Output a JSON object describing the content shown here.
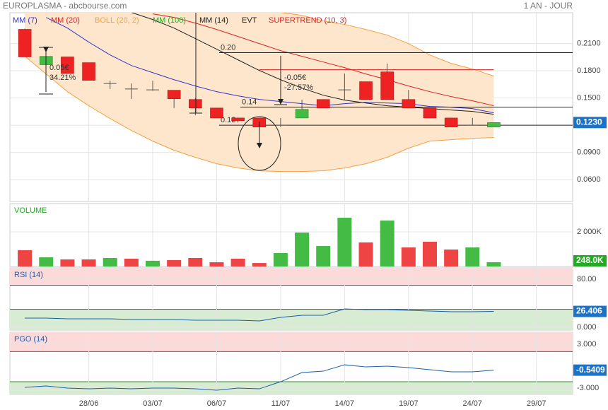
{
  "header": {
    "source": "EUROPLASMA - abcbourse.com",
    "period": "1 AN - JOUR"
  },
  "annotations": [
    "0.05€",
    "34.21%",
    "-0.05€",
    "-27.57%"
  ],
  "chart_data": [
    {
      "type": "candlestick",
      "xlim": [
        -0.7,
        25.7
      ],
      "xticks": [
        {
          "value": 3,
          "label": "28/06"
        },
        {
          "value": 6,
          "label": "03/07"
        },
        {
          "value": 9,
          "label": "06/07"
        },
        {
          "value": 12,
          "label": "11/07"
        },
        {
          "value": 15,
          "label": "14/07"
        },
        {
          "value": 18,
          "label": "19/07"
        },
        {
          "value": 21,
          "label": "24/07"
        },
        {
          "value": 24,
          "label": "29/07"
        }
      ],
      "ylim": [
        0.036,
        0.244
      ],
      "yticks": [
        {
          "value": 0.21,
          "label": "0.2100"
        },
        {
          "value": 0.18,
          "label": "0.1800"
        },
        {
          "value": 0.15,
          "label": "0.1500"
        },
        {
          "value": 0.12,
          "label": "0.1200"
        },
        {
          "value": 0.09,
          "label": "0.0900"
        },
        {
          "value": 0.06,
          "label": "0.0600"
        }
      ],
      "grid": true,
      "up_color": "#44bb44",
      "down_color": "#ee2222",
      "open": [
        0.2257,
        0.1867,
        0.1953,
        0.189,
        0.166,
        0.16,
        0.159,
        0.1586,
        0.1484,
        0.139,
        0.128,
        0.128,
        0.12,
        0.128,
        0.1484,
        0.159,
        0.168,
        0.1788,
        0.1484,
        0.139,
        0.128,
        0.12,
        0.118
      ],
      "high": [
        0.2265,
        0.1959,
        0.1953,
        0.189,
        0.169,
        0.166,
        0.169,
        0.1586,
        0.15,
        0.139,
        0.128,
        0.128,
        0.128,
        0.148,
        0.1484,
        0.177,
        0.168,
        0.188,
        0.159,
        0.139,
        0.128,
        0.128,
        0.123
      ],
      "low": [
        0.1953,
        0.1867,
        0.177,
        0.1695,
        0.16,
        0.149,
        0.158,
        0.139,
        0.131,
        0.128,
        0.123,
        0.118,
        0.118,
        0.128,
        0.139,
        0.148,
        0.1484,
        0.1484,
        0.139,
        0.128,
        0.118,
        0.12,
        0.118
      ],
      "close": [
        0.1953,
        0.1959,
        0.177,
        0.1695,
        0.166,
        0.16,
        0.159,
        0.1492,
        0.139,
        0.128,
        0.125,
        0.118,
        0.12,
        0.1375,
        0.139,
        0.159,
        0.1484,
        0.1484,
        0.139,
        0.128,
        0.118,
        0.12,
        0.123
      ],
      "last_label": "0.1230",
      "last_color": "#1a73c8",
      "indicators": [
        {
          "name": "MM (7)",
          "color": "#3333cc",
          "values": [
            null,
            0.2388,
            0.2271,
            0.2116,
            0.1975,
            0.1858,
            0.178,
            0.1702,
            0.1633,
            0.157,
            0.1524,
            0.1485,
            0.1461,
            0.1438,
            0.1415,
            0.1438,
            0.1453,
            0.1445,
            0.1438,
            0.1407,
            0.1399,
            0.1383,
            0.1337
          ]
        },
        {
          "name": "MM (20)",
          "color": "#dd2222",
          "values": [
            null,
            null,
            null,
            null,
            null,
            null,
            0.2427,
            0.2388,
            0.2326,
            0.2256,
            0.2178,
            0.21,
            0.2022,
            0.196,
            0.1897,
            0.1835,
            0.1765,
            0.1702,
            0.1633,
            0.157,
            0.1516,
            0.1469,
            0.1415
          ]
        },
        {
          "name": "BOLL (20, 2)",
          "color": "#f5a040",
          "fill": "#fde6cc",
          "upper": [
            0.33,
            0.32,
            0.31,
            0.3,
            0.29,
            0.28,
            0.275,
            0.27,
            0.265,
            0.26,
            0.255,
            0.25,
            0.2443,
            0.2412,
            0.235,
            0.2311,
            0.2256,
            0.2194,
            0.21,
            0.1975,
            0.1882,
            0.182,
            0.1742
          ],
          "lower": [
            0.1961,
            0.1765,
            0.157,
            0.1415,
            0.1274,
            0.1142,
            0.1025,
            0.0924,
            0.0846,
            0.0776,
            0.0729,
            0.0698,
            0.069,
            0.069,
            0.0698,
            0.0729,
            0.0776,
            0.0846,
            0.0947,
            0.1025,
            0.1041,
            0.1056,
            0.1064
          ]
        },
        {
          "name": "MM (100)",
          "color": "#22aa22"
        },
        {
          "name": "MM (14)",
          "color": "#222222",
          "values": [
            null,
            null,
            null,
            null,
            null,
            0.2443,
            0.2365,
            0.2271,
            0.2155,
            0.2038,
            0.1921,
            0.1804,
            0.1702,
            0.1609,
            0.1531,
            0.1477,
            0.1445,
            0.1415,
            0.1399,
            0.1383,
            0.1368,
            0.1352,
            0.1321
          ]
        },
        {
          "name": "EVT",
          "color": "#222222"
        },
        {
          "name": "SUPERTREND (10, 3)",
          "color": "#dd2222",
          "values": [
            null,
            null,
            null,
            null,
            null,
            null,
            null,
            null,
            null,
            null,
            null,
            0.1812,
            0.1812,
            0.1812,
            0.1812,
            0.1812,
            0.1812,
            0.1812,
            0.1812,
            0.1812,
            0.1812,
            0.1812,
            0.1812
          ]
        }
      ],
      "levels": [
        {
          "value": 0.2,
          "label": "0.20"
        },
        {
          "value": 0.14,
          "label": "0.14"
        },
        {
          "value": 0.12,
          "label": "0.12"
        }
      ]
    },
    {
      "type": "bar",
      "title": "VOLUME",
      "title_color": "#22aa22",
      "ylim": [
        0,
        3630
      ],
      "yticks": [
        {
          "value": 2000,
          "label": "2 000K"
        }
      ],
      "grid": true,
      "values": [
        940,
        530,
        410,
        410,
        490,
        450,
        330,
        370,
        490,
        245,
        450,
        200,
        775,
        1960,
        1180,
        2815,
        1390,
        2650,
        1100,
        1430,
        980,
        1100,
        248
      ],
      "colors": [
        "#ee4444",
        "#44bb44",
        "#ee4444",
        "#ee4444",
        "#44bb44",
        "#ee4444",
        "#44bb44",
        "#ee4444",
        "#ee4444",
        "#ee4444",
        "#ee4444",
        "#ee4444",
        "#44bb44",
        "#44bb44",
        "#44bb44",
        "#44bb44",
        "#ee4444",
        "#44bb44",
        "#ee4444",
        "#ee4444",
        "#ee4444",
        "#44bb44",
        "#44bb44"
      ],
      "last_label": "248.0K",
      "last_color": "#22aa22"
    },
    {
      "type": "line",
      "title": "RSI (14)",
      "title_color": "#1a5fb4",
      "color": "#1a5fa8",
      "ylim": [
        -4.7,
        98.8
      ],
      "yticks": [
        {
          "value": 80,
          "label": "80.00"
        },
        {
          "value": 0,
          "label": "0.000"
        }
      ],
      "grid": true,
      "zones": [
        {
          "from": 70,
          "to": 98.8,
          "color": "#fcdada",
          "line": "#c33333"
        },
        {
          "from": -4.7,
          "to": 30,
          "color": "#d8ebd3",
          "line": "#338833"
        }
      ],
      "values": [
        15.3,
        15.3,
        14.1,
        14.1,
        14.1,
        12.9,
        12.9,
        12.9,
        11.8,
        11.8,
        11.8,
        10.6,
        16.5,
        20,
        20,
        30.6,
        29.4,
        29.4,
        28.2,
        27.1,
        25.9,
        25.9,
        26.406
      ],
      "last_label": "26.406",
      "last_color": "#1a73c8"
    },
    {
      "type": "line",
      "title": "PGO (14)",
      "title_color": "#1a5fb4",
      "color": "#1a5fa8",
      "ylim": [
        -3.87,
        4.65
      ],
      "yticks": [
        {
          "value": 3,
          "label": "3.000"
        },
        {
          "value": -3,
          "label": "-3.000"
        }
      ],
      "grid": true,
      "zones": [
        {
          "from": 2,
          "to": 4.65,
          "color": "#fcdada",
          "line": "#c33333"
        },
        {
          "from": -3.87,
          "to": -2.13,
          "color": "#d8ebd3",
          "line": "#338833"
        }
      ],
      "values": [
        -2.9,
        -2.71,
        -3.0,
        -3.1,
        -3.0,
        -3.1,
        -3.0,
        -3.0,
        -3.1,
        -3.29,
        -3.0,
        -3.1,
        -2.13,
        -0.87,
        -0.68,
        0.19,
        -0.1,
        0,
        -0.19,
        -0.48,
        -0.77,
        -0.77,
        -0.5409
      ],
      "last_label": "-0.5409",
      "last_color": "#1a73c8"
    }
  ]
}
